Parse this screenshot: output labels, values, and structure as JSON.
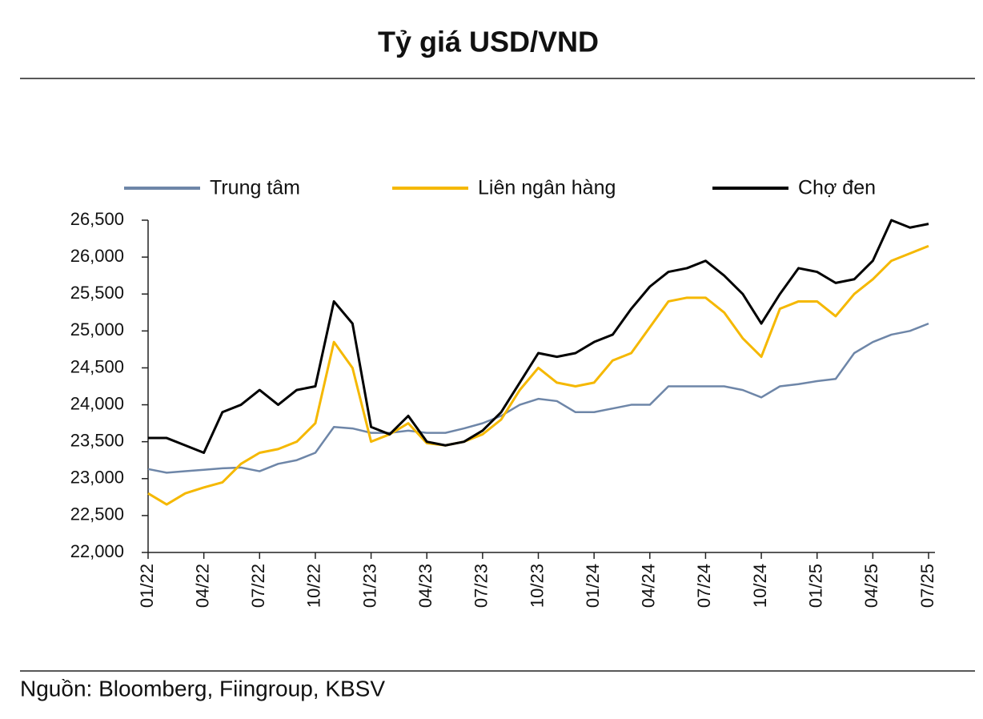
{
  "chart_data": {
    "type": "line",
    "title": "Tỷ giá USD/VND",
    "source": "Nguồn: Bloomberg, Fiingroup, KBSV",
    "categories": [
      "01/22",
      null,
      null,
      "04/22",
      null,
      null,
      "07/22",
      null,
      null,
      "10/22",
      null,
      null,
      "01/23",
      null,
      null,
      "04/23",
      null,
      null,
      "07/23",
      null,
      null,
      "10/23",
      null,
      null,
      "01/24",
      null,
      null,
      "04/24",
      null,
      null,
      "07/24",
      null,
      null,
      "10/24",
      null,
      null,
      "01/25",
      null,
      null,
      "04/25",
      null,
      null,
      "07/25"
    ],
    "series": [
      {
        "name": "Trung tâm",
        "color": "#6e86a8",
        "values": [
          23130,
          23080,
          23100,
          23120,
          23140,
          23150,
          23100,
          23200,
          23250,
          23350,
          23700,
          23680,
          23620,
          23620,
          23650,
          23620,
          23620,
          23680,
          23750,
          23850,
          24000,
          24080,
          24050,
          23900,
          23900,
          23950,
          24000,
          24000,
          24250,
          24250,
          24250,
          24250,
          24200,
          24100,
          24250,
          24280,
          24320,
          24350,
          24700,
          24850,
          24950,
          25000,
          25100
        ]
      },
      {
        "name": "Liên ngân hàng",
        "color": "#f5b800",
        "values": [
          22800,
          22650,
          22800,
          22880,
          22950,
          23200,
          23350,
          23400,
          23500,
          23750,
          24850,
          24500,
          23500,
          23600,
          23750,
          23480,
          23450,
          23500,
          23600,
          23800,
          24200,
          24500,
          24300,
          24250,
          24300,
          24600,
          24700,
          25050,
          25400,
          25450,
          25450,
          25250,
          24900,
          24650,
          25300,
          25400,
          25400,
          25200,
          25500,
          25700,
          25950,
          26050,
          26150
        ]
      },
      {
        "name": "Chợ đen",
        "color": "#000000",
        "values": [
          23550,
          23550,
          23450,
          23350,
          23900,
          24000,
          24200,
          24000,
          24200,
          24250,
          25400,
          25100,
          23700,
          23600,
          23850,
          23500,
          23450,
          23500,
          23650,
          23900,
          24300,
          24700,
          24650,
          24700,
          24850,
          24950,
          25300,
          25600,
          25800,
          25850,
          25950,
          25750,
          25500,
          25100,
          25500,
          25850,
          25800,
          25650,
          25700,
          25950,
          26500,
          26400,
          26450
        ]
      }
    ],
    "ylim": [
      22000,
      26500
    ],
    "yticks": [
      {
        "value": 22000,
        "label": "22,000"
      },
      {
        "value": 22500,
        "label": "22,500"
      },
      {
        "value": 23000,
        "label": "23,000"
      },
      {
        "value": 23500,
        "label": "23,500"
      },
      {
        "value": 24000,
        "label": "24,000"
      },
      {
        "value": 24500,
        "label": "24,500"
      },
      {
        "value": 25000,
        "label": "25,000"
      },
      {
        "value": 25500,
        "label": "25,500"
      },
      {
        "value": 26000,
        "label": "26,000"
      },
      {
        "value": 26500,
        "label": "26,500"
      }
    ],
    "legend": "top"
  }
}
